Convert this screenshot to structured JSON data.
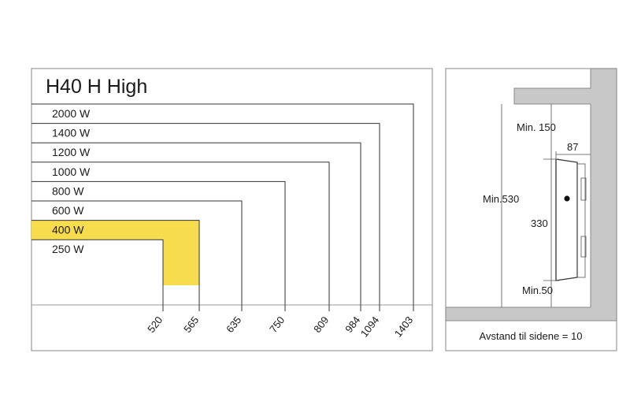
{
  "title": "H40 H High",
  "watt_rows": [
    {
      "label": "2000 W",
      "width": "1403"
    },
    {
      "label": "1400 W",
      "width": "1094"
    },
    {
      "label": "1200 W",
      "width": "984"
    },
    {
      "label": "1000 W",
      "width": "809"
    },
    {
      "label": "800 W",
      "width": "750"
    },
    {
      "label": "600 W",
      "width": "635"
    },
    {
      "label": "400 W",
      "width": "565",
      "highlighted": true
    },
    {
      "label": "250 W",
      "width": "520"
    }
  ],
  "width_ticks": [
    "520",
    "565",
    "635",
    "750",
    "809",
    "984",
    "1094",
    "1403"
  ],
  "install": {
    "min_top": "Min. 150",
    "depth": "87",
    "min_height": "Min.530",
    "height": "330",
    "min_bottom": "Min.50",
    "side_note": "Avstand til sidene = 10"
  },
  "colors": {
    "highlight": "#f7dc4e",
    "wall": "#c8c8c8",
    "frame": "#9a9a9a",
    "line": "#333333"
  }
}
